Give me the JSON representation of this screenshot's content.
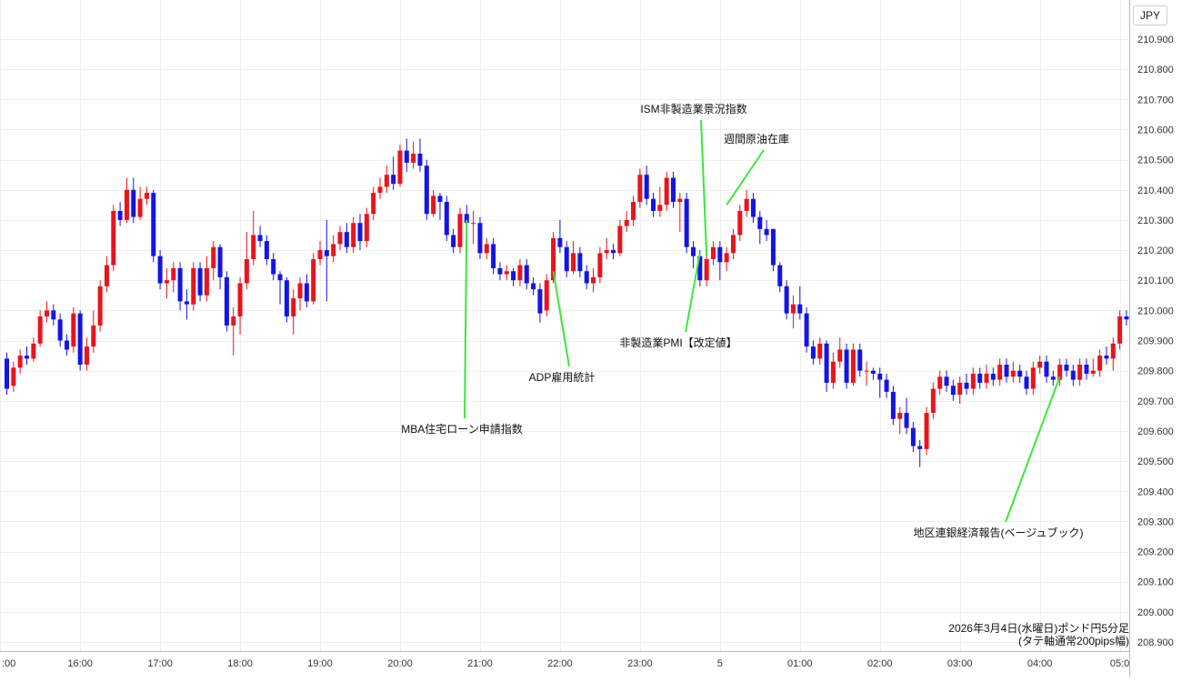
{
  "currency_label": "JPY",
  "caption": {
    "line1": "2026年3月4日(水曜日)ポンド円5分足",
    "line2": "(タテ軸通常200pips幅)"
  },
  "colors": {
    "up": "#e8141e",
    "down": "#1414e6",
    "annotation_line": "#3ce63c",
    "grid": "#eeeeee"
  },
  "chart_data": {
    "type": "candlestick",
    "interval_minutes": 5,
    "ylim": [
      208.9,
      210.9
    ],
    "yticks": [
      "210.900",
      "210.800",
      "210.700",
      "210.600",
      "210.500",
      "210.400",
      "210.300",
      "210.200",
      "210.100",
      "210.000",
      "209.900",
      "209.800",
      "209.700",
      "209.600",
      "209.500",
      "209.400",
      "209.300",
      "209.200",
      "209.100",
      "209.000",
      "208.900"
    ],
    "xticks": [
      {
        "label": ":00",
        "bar": -1
      },
      {
        "label": "16:00",
        "bar": 11
      },
      {
        "label": "17:00",
        "bar": 23
      },
      {
        "label": "18:00",
        "bar": 35
      },
      {
        "label": "19:00",
        "bar": 47
      },
      {
        "label": "20:00",
        "bar": 59
      },
      {
        "label": "21:00",
        "bar": 71
      },
      {
        "label": "22:00",
        "bar": 83
      },
      {
        "label": "23:00",
        "bar": 95
      },
      {
        "label": "5",
        "bar": 107
      },
      {
        "label": "01:00",
        "bar": 119
      },
      {
        "label": "02:00",
        "bar": 131
      },
      {
        "label": "03:00",
        "bar": 143
      },
      {
        "label": "04:00",
        "bar": 155
      },
      {
        "label": "05:0",
        "bar": 167
      }
    ],
    "candles": [
      [
        209.84,
        209.74,
        209.86,
        209.72
      ],
      [
        209.75,
        209.81,
        209.83,
        209.73
      ],
      [
        209.81,
        209.85,
        209.87,
        209.79
      ],
      [
        209.85,
        209.84,
        209.88,
        209.82
      ],
      [
        209.84,
        209.89,
        209.91,
        209.83
      ],
      [
        209.89,
        209.98,
        210.0,
        209.88
      ],
      [
        209.98,
        210.0,
        210.03,
        209.96
      ],
      [
        210.0,
        209.97,
        210.02,
        209.95
      ],
      [
        209.97,
        209.9,
        209.99,
        209.88
      ],
      [
        209.9,
        209.87,
        209.92,
        209.85
      ],
      [
        209.88,
        209.99,
        210.01,
        209.86
      ],
      [
        209.99,
        209.82,
        210.0,
        209.8
      ],
      [
        209.82,
        209.88,
        209.91,
        209.8
      ],
      [
        209.88,
        209.95,
        210.0,
        209.86
      ],
      [
        209.95,
        210.08,
        210.1,
        209.93
      ],
      [
        210.08,
        210.15,
        210.18,
        210.06
      ],
      [
        210.15,
        210.33,
        210.35,
        210.13
      ],
      [
        210.33,
        210.3,
        210.36,
        210.28
      ],
      [
        210.3,
        210.4,
        210.44,
        210.29
      ],
      [
        210.4,
        210.31,
        210.44,
        210.29
      ],
      [
        210.31,
        210.37,
        210.41,
        210.3
      ],
      [
        210.37,
        210.39,
        210.41,
        210.35
      ],
      [
        210.39,
        210.18,
        210.4,
        210.16
      ],
      [
        210.18,
        210.09,
        210.2,
        210.07
      ],
      [
        210.09,
        210.1,
        210.14,
        210.04
      ],
      [
        210.1,
        210.14,
        210.16,
        210.06
      ],
      [
        210.14,
        210.03,
        210.16,
        210.0
      ],
      [
        210.03,
        210.02,
        210.07,
        209.97
      ],
      [
        210.02,
        210.14,
        210.16,
        210.0
      ],
      [
        210.14,
        210.05,
        210.16,
        210.03
      ],
      [
        210.05,
        210.14,
        210.18,
        210.03
      ],
      [
        210.14,
        210.21,
        210.23,
        210.1
      ],
      [
        210.21,
        210.11,
        210.22,
        210.07
      ],
      [
        210.11,
        209.95,
        210.13,
        209.93
      ],
      [
        209.95,
        209.98,
        210.01,
        209.85
      ],
      [
        209.98,
        210.09,
        210.11,
        209.92
      ],
      [
        210.09,
        210.17,
        210.26,
        210.07
      ],
      [
        210.17,
        210.25,
        210.33,
        210.15
      ],
      [
        210.25,
        210.23,
        210.28,
        210.21
      ],
      [
        210.23,
        210.17,
        210.25,
        210.15
      ],
      [
        210.17,
        210.12,
        210.19,
        210.1
      ],
      [
        210.12,
        210.1,
        210.13,
        210.02
      ],
      [
        210.1,
        209.98,
        210.11,
        209.96
      ],
      [
        209.98,
        210.04,
        210.07,
        209.92
      ],
      [
        210.04,
        210.09,
        210.11,
        210.0
      ],
      [
        210.09,
        210.03,
        210.12,
        210.01
      ],
      [
        210.03,
        210.17,
        210.19,
        210.02
      ],
      [
        210.17,
        210.2,
        210.23,
        210.15
      ],
      [
        210.2,
        210.18,
        210.3,
        210.03
      ],
      [
        210.18,
        210.22,
        210.25,
        210.16
      ],
      [
        210.22,
        210.26,
        210.28,
        210.2
      ],
      [
        210.26,
        210.21,
        210.29,
        210.19
      ],
      [
        210.21,
        210.29,
        210.31,
        210.19
      ],
      [
        210.29,
        210.23,
        210.32,
        210.2
      ],
      [
        210.23,
        210.32,
        210.34,
        210.21
      ],
      [
        210.32,
        210.39,
        210.41,
        210.3
      ],
      [
        210.39,
        210.41,
        210.44,
        210.37
      ],
      [
        210.41,
        210.45,
        210.48,
        210.39
      ],
      [
        210.45,
        210.42,
        210.51,
        210.4
      ],
      [
        210.42,
        210.53,
        210.55,
        210.41
      ],
      [
        210.53,
        210.49,
        210.57,
        210.46
      ],
      [
        210.49,
        210.52,
        210.56,
        210.47
      ],
      [
        210.52,
        210.48,
        210.57,
        210.46
      ],
      [
        210.48,
        210.32,
        210.5,
        210.3
      ],
      [
        210.32,
        210.38,
        210.4,
        210.31
      ],
      [
        210.38,
        210.36,
        210.39,
        210.3
      ],
      [
        210.36,
        210.25,
        210.38,
        210.23
      ],
      [
        210.25,
        210.21,
        210.27,
        210.19
      ],
      [
        210.21,
        210.32,
        210.34,
        210.19
      ],
      [
        210.32,
        210.29,
        210.35,
        210.27
      ],
      [
        210.29,
        210.29,
        210.33,
        210.22
      ],
      [
        210.29,
        210.19,
        210.31,
        210.17
      ],
      [
        210.19,
        210.22,
        210.24,
        210.17
      ],
      [
        210.22,
        210.14,
        210.24,
        210.12
      ],
      [
        210.14,
        210.12,
        210.16,
        210.1
      ],
      [
        210.12,
        210.13,
        210.15,
        210.1
      ],
      [
        210.13,
        210.1,
        210.14,
        210.08
      ],
      [
        210.1,
        210.15,
        210.17,
        210.08
      ],
      [
        210.15,
        210.09,
        210.17,
        210.07
      ],
      [
        210.09,
        210.07,
        210.11,
        210.05
      ],
      [
        210.07,
        209.99,
        210.09,
        209.96
      ],
      [
        210.0,
        210.1,
        210.12,
        209.98
      ],
      [
        210.1,
        210.24,
        210.26,
        210.09
      ],
      [
        210.24,
        210.21,
        210.3,
        210.19
      ],
      [
        210.21,
        210.13,
        210.23,
        210.11
      ],
      [
        210.13,
        210.19,
        210.23,
        210.12
      ],
      [
        210.19,
        210.13,
        210.21,
        210.11
      ],
      [
        210.13,
        210.09,
        210.15,
        210.07
      ],
      [
        210.09,
        210.11,
        210.14,
        210.06
      ],
      [
        210.11,
        210.19,
        210.21,
        210.09
      ],
      [
        210.19,
        210.2,
        210.24,
        210.17
      ],
      [
        210.2,
        210.19,
        210.22,
        210.17
      ],
      [
        210.19,
        210.28,
        210.3,
        210.18
      ],
      [
        210.28,
        210.3,
        210.33,
        210.26
      ],
      [
        210.3,
        210.36,
        210.38,
        210.28
      ],
      [
        210.36,
        210.45,
        210.47,
        210.34
      ],
      [
        210.45,
        210.37,
        210.48,
        210.35
      ],
      [
        210.37,
        210.33,
        210.39,
        210.31
      ],
      [
        210.33,
        210.35,
        210.41,
        210.31
      ],
      [
        210.35,
        210.44,
        210.46,
        210.33
      ],
      [
        210.44,
        210.36,
        210.46,
        210.34
      ],
      [
        210.36,
        210.37,
        210.39,
        210.26
      ],
      [
        210.37,
        210.21,
        210.39,
        210.19
      ],
      [
        210.21,
        210.18,
        210.23,
        210.14
      ],
      [
        210.18,
        210.1,
        210.2,
        210.08
      ],
      [
        210.1,
        210.17,
        210.19,
        210.08
      ],
      [
        210.17,
        210.21,
        210.23,
        210.15
      ],
      [
        210.21,
        210.16,
        210.23,
        210.1
      ],
      [
        210.16,
        210.19,
        210.21,
        210.13
      ],
      [
        210.19,
        210.25,
        210.27,
        210.17
      ],
      [
        210.25,
        210.33,
        210.35,
        210.23
      ],
      [
        210.33,
        210.37,
        210.4,
        210.31
      ],
      [
        210.37,
        210.31,
        210.39,
        210.29
      ],
      [
        210.31,
        210.27,
        210.33,
        210.22
      ],
      [
        210.27,
        210.25,
        210.3,
        210.23
      ],
      [
        210.27,
        210.15,
        210.27,
        210.13
      ],
      [
        210.15,
        210.08,
        210.16,
        210.06
      ],
      [
        210.08,
        209.99,
        210.1,
        209.97
      ],
      [
        209.99,
        210.02,
        210.05,
        209.94
      ],
      [
        210.02,
        209.99,
        210.08,
        209.97
      ],
      [
        209.99,
        209.88,
        210.01,
        209.86
      ],
      [
        209.88,
        209.84,
        209.9,
        209.82
      ],
      [
        209.84,
        209.89,
        209.91,
        209.82
      ],
      [
        209.89,
        209.76,
        209.9,
        209.73
      ],
      [
        209.76,
        209.83,
        209.86,
        209.74
      ],
      [
        209.83,
        209.87,
        209.91,
        209.81
      ],
      [
        209.87,
        209.76,
        209.89,
        209.74
      ],
      [
        209.76,
        209.87,
        209.89,
        209.75
      ],
      [
        209.87,
        209.8,
        209.89,
        209.78
      ],
      [
        209.8,
        209.8,
        209.83,
        209.75
      ],
      [
        209.8,
        209.79,
        209.81,
        209.77
      ],
      [
        209.79,
        209.77,
        209.81,
        209.71
      ],
      [
        209.77,
        209.73,
        209.79,
        209.71
      ],
      [
        209.73,
        209.64,
        209.75,
        209.62
      ],
      [
        209.64,
        209.66,
        209.68,
        209.59
      ],
      [
        209.66,
        209.61,
        209.71,
        209.59
      ],
      [
        209.61,
        209.55,
        209.63,
        209.53
      ],
      [
        209.55,
        209.54,
        209.57,
        209.48
      ],
      [
        209.54,
        209.66,
        209.68,
        209.52
      ],
      [
        209.66,
        209.74,
        209.76,
        209.64
      ],
      [
        209.74,
        209.78,
        209.8,
        209.72
      ],
      [
        209.78,
        209.75,
        209.8,
        209.73
      ],
      [
        209.75,
        209.72,
        209.77,
        209.7
      ],
      [
        209.72,
        209.76,
        209.78,
        209.69
      ],
      [
        209.76,
        209.74,
        209.79,
        209.72
      ],
      [
        209.74,
        209.79,
        209.81,
        209.72
      ],
      [
        209.79,
        209.76,
        209.81,
        209.74
      ],
      [
        209.76,
        209.79,
        209.82,
        209.74
      ],
      [
        209.79,
        209.77,
        209.81,
        209.75
      ],
      [
        209.77,
        209.82,
        209.84,
        209.75
      ],
      [
        209.82,
        209.78,
        209.84,
        209.76
      ],
      [
        209.78,
        209.8,
        209.83,
        209.76
      ],
      [
        209.8,
        209.78,
        209.82,
        209.76
      ],
      [
        209.78,
        209.74,
        209.8,
        209.72
      ],
      [
        209.74,
        209.81,
        209.83,
        209.72
      ],
      [
        209.81,
        209.83,
        209.85,
        209.79
      ],
      [
        209.83,
        209.78,
        209.85,
        209.76
      ],
      [
        209.78,
        209.77,
        209.8,
        209.75
      ],
      [
        209.77,
        209.82,
        209.84,
        209.75
      ],
      [
        209.82,
        209.8,
        209.84,
        209.78
      ],
      [
        209.8,
        209.77,
        209.82,
        209.75
      ],
      [
        209.77,
        209.82,
        209.84,
        209.75
      ],
      [
        209.82,
        209.79,
        209.84,
        209.77
      ],
      [
        209.79,
        209.8,
        209.84,
        209.78
      ],
      [
        209.8,
        209.85,
        209.87,
        209.78
      ],
      [
        209.85,
        209.84,
        209.88,
        209.82
      ],
      [
        209.84,
        209.89,
        209.91,
        209.8
      ],
      [
        209.89,
        209.98,
        210.0,
        209.87
      ],
      [
        209.98,
        209.97,
        210.0,
        209.95
      ]
    ],
    "annotations": [
      {
        "text": "MBA住宅ローン申請指数",
        "bar": 69,
        "price": 210.3
      },
      {
        "text": "ADP雇用統計",
        "bar": 82,
        "price": 210.13
      },
      {
        "text": "非製造業PMI【改定値】",
        "bar": 104,
        "price": 210.19
      },
      {
        "text": "ISM非製造業景況指数",
        "bar": 105,
        "price": 210.18
      },
      {
        "text": "週間原油在庫",
        "bar": 108,
        "price": 210.35
      },
      {
        "text": "地区連銀経済報告(ベージュブック)",
        "bar": 158,
        "price": 209.78
      }
    ]
  }
}
